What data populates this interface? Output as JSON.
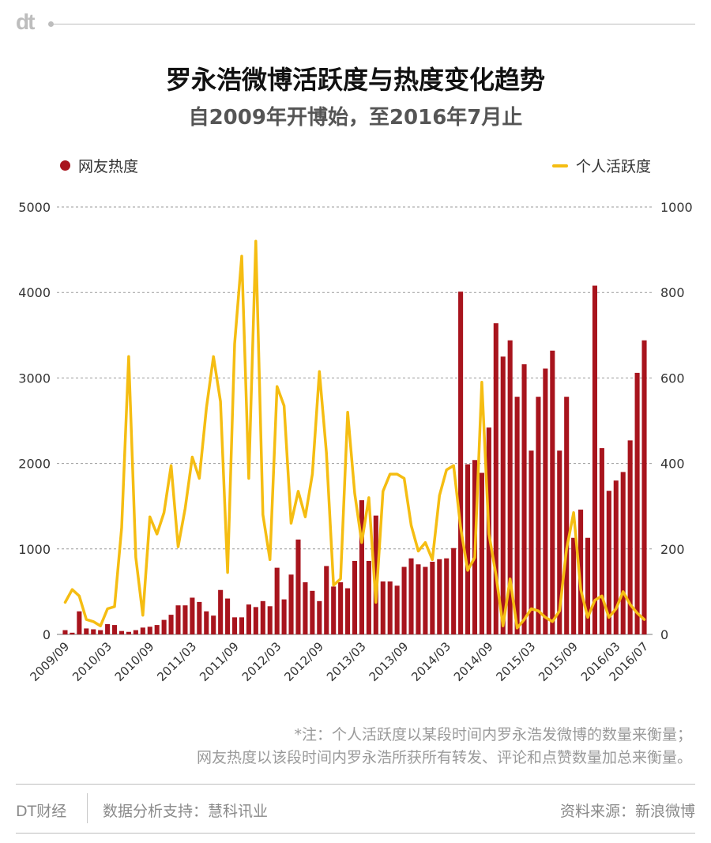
{
  "brand": {
    "logo": "dt"
  },
  "header": {
    "title": "罗永浩微博活跃度与热度变化趋势",
    "subtitle": "自2009年开博始，至2016年7月止"
  },
  "colors": {
    "bar": "#a8141d",
    "line": "#f5bd12",
    "grid": "#9a9a9a"
  },
  "chart_data": {
    "type": "bar+line",
    "legend_placement": "top",
    "grid": true,
    "series": [
      {
        "name": "网友热度",
        "type": "bar",
        "axis": "left",
        "values": [
          50,
          20,
          270,
          70,
          60,
          50,
          120,
          110,
          40,
          30,
          50,
          80,
          90,
          110,
          170,
          230,
          340,
          340,
          430,
          380,
          270,
          220,
          520,
          420,
          200,
          200,
          350,
          320,
          390,
          330,
          780,
          410,
          700,
          1110,
          610,
          510,
          390,
          800,
          560,
          610,
          540,
          860,
          1570,
          860,
          1390,
          620,
          620,
          570,
          790,
          890,
          820,
          790,
          850,
          880,
          890,
          1010,
          4010,
          1990,
          2040,
          1890,
          2420,
          3640,
          3250,
          3440,
          2780,
          3160,
          2150,
          2780,
          3110,
          3320,
          2150,
          2780,
          1130,
          1460,
          1130,
          4080,
          2180,
          1680,
          1800,
          1900,
          2270,
          3060,
          3440
        ]
      },
      {
        "name": "个人活跃度",
        "type": "line",
        "axis": "right",
        "values": [
          75,
          105,
          90,
          35,
          30,
          20,
          60,
          65,
          250,
          650,
          180,
          45,
          275,
          235,
          285,
          395,
          205,
          295,
          415,
          365,
          530,
          650,
          545,
          145,
          680,
          885,
          365,
          920,
          280,
          175,
          580,
          535,
          260,
          335,
          275,
          375,
          615,
          425,
          115,
          130,
          520,
          330,
          215,
          320,
          75,
          335,
          375,
          375,
          365,
          255,
          195,
          215,
          175,
          325,
          385,
          395,
          250,
          150,
          180,
          590,
          235,
          140,
          20,
          130,
          15,
          35,
          60,
          55,
          40,
          30,
          55,
          200,
          285,
          105,
          40,
          80,
          90,
          40,
          60,
          100,
          70,
          50,
          35
        ]
      }
    ],
    "x_tick_labels": [
      "2009/09",
      "2010/03",
      "2010/09",
      "2011/03",
      "2011/09",
      "2012/03",
      "2012/09",
      "2013/03",
      "2013/09",
      "2014/03",
      "2014/09",
      "2015/03",
      "2015/09",
      "2016/03",
      "2016/07"
    ],
    "x_tick_months": [
      0,
      6,
      12,
      18,
      24,
      30,
      36,
      42,
      48,
      54,
      60,
      66,
      72,
      78,
      82
    ],
    "y_left": {
      "min": 0,
      "max": 5000,
      "ticks": [
        "0",
        "1000",
        "2000",
        "3000",
        "4000",
        "5000"
      ]
    },
    "y_right": {
      "min": 0,
      "max": 1000,
      "ticks": [
        "0",
        "200",
        "400",
        "600",
        "800",
        "1000"
      ]
    }
  },
  "note": {
    "line1": "*注：个人活跃度以某段时间内罗永浩发微博的数量来衡量；",
    "line2": "网友热度以该段时间内罗永浩所获所有转发、评论和点赞数量加总来衡量。"
  },
  "footer": {
    "brand": "DT财经",
    "support": "数据分析支持：慧科讯业",
    "source": "资料来源：新浪微博"
  }
}
